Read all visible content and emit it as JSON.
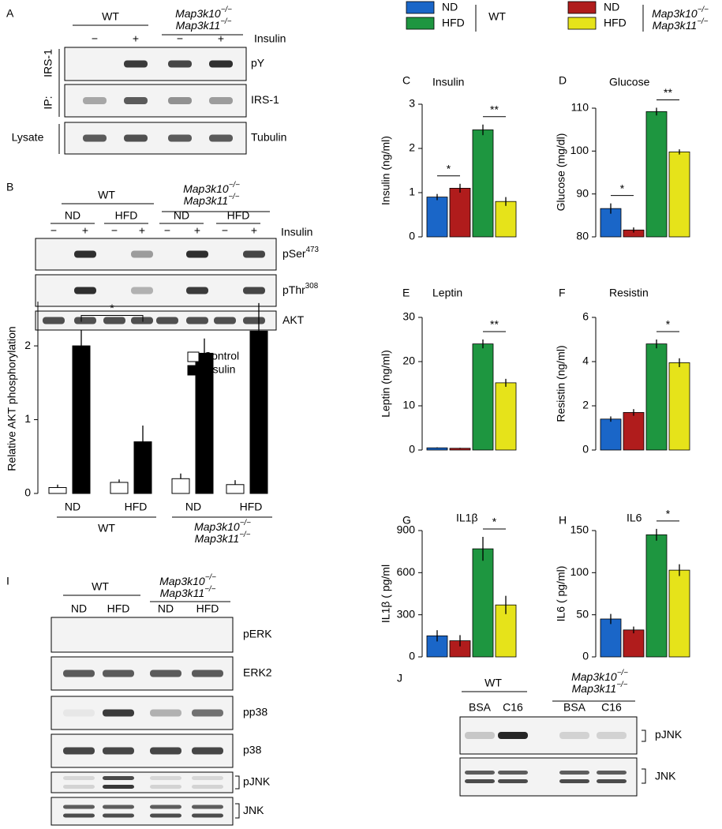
{
  "genotype": [
    {
      "base": "Map3k10",
      "sup": "−/−"
    },
    {
      "base": "Map3k11",
      "sup": "−/−"
    }
  ],
  "legend": {
    "series": [
      {
        "name": "ND",
        "color": "#1a66c8"
      },
      {
        "name": "HFD",
        "color": "#1e9640"
      },
      {
        "name": "ND",
        "color": "#b01c1c"
      },
      {
        "name": "HFD",
        "color": "#e6e31a"
      }
    ],
    "group": "WT"
  },
  "panels": {
    "A": {
      "letter": "A",
      "group": "WT",
      "lanes": [
        "−",
        "+",
        "−",
        "+"
      ],
      "treatment": "Insulin",
      "rows": [
        "pY",
        "IRS-1",
        "Tubulin"
      ],
      "ip_target": "IRS-1",
      "ip": "IP:",
      "lysate": "Lysate"
    },
    "B": {
      "letter": "B",
      "group": "WT",
      "conditions": [
        "ND",
        "HFD",
        "ND",
        "HFD"
      ],
      "lanes": [
        "−",
        "+",
        "−",
        "+",
        "−",
        "+",
        "−",
        "+"
      ],
      "treatment": "Insulin",
      "rows": [
        {
          "base": "pSer",
          "sup": "473"
        },
        {
          "base": "pThr",
          "sup": "308"
        },
        {
          "base": "AKT"
        }
      ]
    },
    "I": {
      "letter": "I",
      "group": "WT",
      "lanes": [
        "ND",
        "HFD",
        "ND",
        "HFD"
      ],
      "rows": [
        "pERK",
        "ERK2",
        "pp38",
        "p38",
        "pJNK",
        "JNK"
      ]
    },
    "J": {
      "letter": "J",
      "group": "WT",
      "lanes": [
        "BSA",
        "C16",
        "BSA",
        "C16"
      ],
      "rows": [
        "pJNK",
        "JNK"
      ]
    }
  },
  "chart_data": [
    {
      "type": "grouped_bar",
      "ylabel": "Relative AKT phosphorylation",
      "categories": [
        "ND",
        "HFD",
        "ND",
        "HFD"
      ],
      "group": "WT",
      "series": [
        {
          "name": "Control",
          "color": "#ffffff",
          "values": [
            0.08,
            0.15,
            0.2,
            0.12
          ],
          "errors": [
            0.04,
            0.04,
            0.07,
            0.06
          ]
        },
        {
          "name": "Insulin",
          "color": "#000000",
          "values": [
            2.0,
            0.7,
            1.9,
            2.2
          ],
          "errors": [
            0.22,
            0.22,
            0.2,
            0.38
          ]
        }
      ],
      "ylim": [
        0,
        2.6
      ],
      "yticks": [
        0,
        1,
        2
      ],
      "significance": [
        {
          "series": 1,
          "from": 0,
          "to": 1,
          "label": "*"
        }
      ]
    },
    {
      "type": "bar",
      "panel": "C",
      "title": "Insulin",
      "ylabel": "Insulin (ng/ml)",
      "categories": [
        null,
        null,
        null,
        null
      ],
      "values": [
        0.9,
        1.1,
        2.42,
        0.8
      ],
      "errors": [
        0.07,
        0.1,
        0.12,
        0.1
      ],
      "colors": [
        "#1a66c8",
        "#b01c1c",
        "#1e9640",
        "#e6e31a"
      ],
      "ylim": [
        0,
        3
      ],
      "yticks": [
        0,
        1,
        2,
        3
      ],
      "significance": [
        {
          "from": 0,
          "to": 1,
          "label": "*"
        },
        {
          "from": 2,
          "to": 3,
          "label": "**"
        }
      ]
    },
    {
      "type": "bar",
      "panel": "D",
      "title": "Glucose",
      "ylabel": "Glucose (mg/dl)",
      "categories": [
        null,
        null,
        null,
        null
      ],
      "values": [
        86.6,
        81.6,
        109.2,
        99.8
      ],
      "errors": [
        1.2,
        0.6,
        0.9,
        0.6
      ],
      "colors": [
        "#1a66c8",
        "#b01c1c",
        "#1e9640",
        "#e6e31a"
      ],
      "ylim": [
        80,
        110
      ],
      "yticks": [
        80,
        90,
        100,
        110
      ],
      "significance": [
        {
          "from": 0,
          "to": 1,
          "label": "*"
        },
        {
          "from": 2,
          "to": 3,
          "label": "**"
        }
      ]
    },
    {
      "type": "bar",
      "panel": "E",
      "title": "Leptin",
      "ylabel": "Leptin  (ng/ml)",
      "categories": [
        null,
        null,
        null,
        null
      ],
      "values": [
        0.5,
        0.4,
        24,
        15.2
      ],
      "errors": [
        0.1,
        0.1,
        1.0,
        0.9
      ],
      "colors": [
        "#1a66c8",
        "#b01c1c",
        "#1e9640",
        "#e6e31a"
      ],
      "ylim": [
        0,
        30
      ],
      "yticks": [
        0,
        10,
        20,
        30
      ],
      "significance": [
        {
          "from": 2,
          "to": 3,
          "label": "**"
        }
      ]
    },
    {
      "type": "bar",
      "panel": "F",
      "title": "Resistin",
      "ylabel": "Resistin  (ng/ml)",
      "categories": [
        null,
        null,
        null,
        null
      ],
      "values": [
        1.4,
        1.7,
        4.8,
        3.95
      ],
      "errors": [
        0.12,
        0.15,
        0.2,
        0.2
      ],
      "colors": [
        "#1a66c8",
        "#b01c1c",
        "#1e9640",
        "#e6e31a"
      ],
      "ylim": [
        0,
        6
      ],
      "yticks": [
        0,
        2,
        4,
        6
      ],
      "significance": [
        {
          "from": 2,
          "to": 3,
          "label": "*"
        }
      ]
    },
    {
      "type": "bar",
      "panel": "G",
      "title": "IL1β",
      "ylabel": "IL1β ( pg/ml",
      "categories": [
        null,
        null,
        null,
        null
      ],
      "values": [
        150,
        115,
        770,
        370
      ],
      "errors": [
        40,
        40,
        85,
        65
      ],
      "colors": [
        "#1a66c8",
        "#b01c1c",
        "#1e9640",
        "#e6e31a"
      ],
      "ylim": [
        0,
        900
      ],
      "yticks": [
        0,
        300,
        600,
        900
      ],
      "significance": [
        {
          "from": 2,
          "to": 3,
          "label": "*"
        }
      ]
    },
    {
      "type": "bar",
      "panel": "H",
      "title": "IL6",
      "ylabel": "IL6 ( pg/ml)",
      "categories": [
        null,
        null,
        null,
        null
      ],
      "values": [
        45,
        32,
        145,
        103
      ],
      "errors": [
        6,
        4,
        7,
        7
      ],
      "colors": [
        "#1a66c8",
        "#b01c1c",
        "#1e9640",
        "#e6e31a"
      ],
      "ylim": [
        0,
        150
      ],
      "yticks": [
        0,
        50,
        100,
        150
      ],
      "significance": [
        {
          "from": 2,
          "to": 3,
          "label": "*"
        }
      ]
    }
  ]
}
